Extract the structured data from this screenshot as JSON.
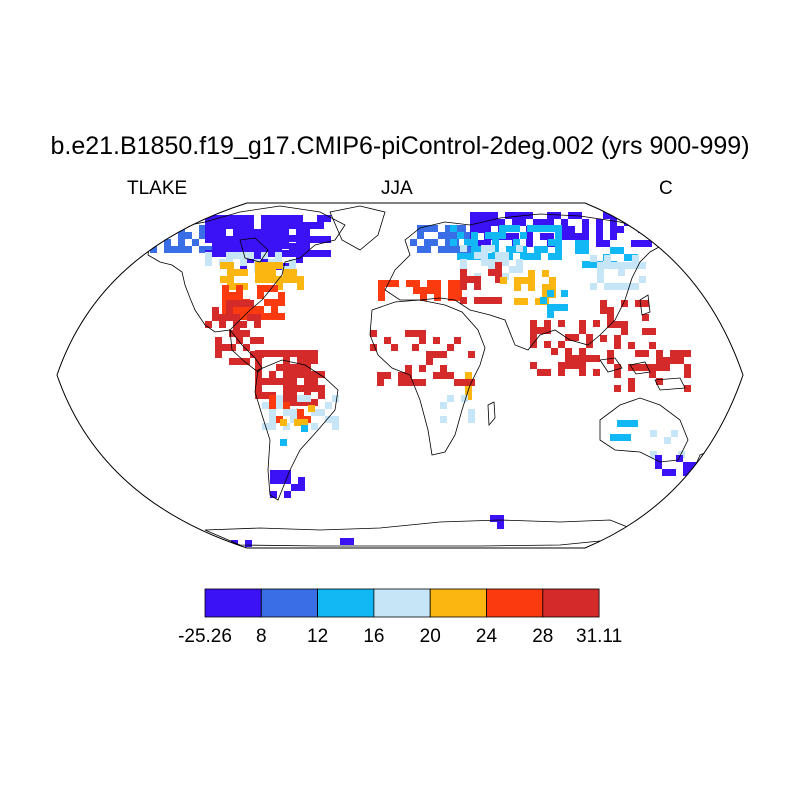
{
  "title": "b.e21.B1850.f19_g17.CMIP6-piControl-2deg.002 (yrs 900-999)",
  "left_label": "TLAKE",
  "center_label": "JJA",
  "right_label": "C",
  "map": {
    "projection": "Robinson",
    "field": "TLAKE"
  },
  "colorbar": {
    "colors": [
      "#3a12f5",
      "#3a6ee6",
      "#12b8f4",
      "#c6e6f7",
      "#fbb612",
      "#fc3a10",
      "#d42a2a"
    ],
    "labels": [
      "-25.26",
      "8",
      "12",
      "16",
      "20",
      "24",
      "28",
      "31.11"
    ]
  }
}
